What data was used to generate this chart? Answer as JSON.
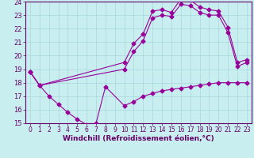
{
  "background_color": "#c8eef0",
  "grid_color": "#a8d8dc",
  "line_color": "#990099",
  "xlabel": "Windchill (Refroidissement éolien,°C)",
  "xlim": [
    -0.5,
    23.5
  ],
  "ylim": [
    15,
    24
  ],
  "xticks": [
    0,
    1,
    2,
    3,
    4,
    5,
    6,
    7,
    8,
    9,
    10,
    11,
    12,
    13,
    14,
    15,
    16,
    17,
    18,
    19,
    20,
    21,
    22,
    23
  ],
  "yticks": [
    15,
    16,
    17,
    18,
    19,
    20,
    21,
    22,
    23,
    24
  ],
  "line1_x": [
    0,
    1,
    2,
    3,
    4,
    5,
    6,
    7,
    8,
    10,
    11,
    12,
    13,
    14,
    15,
    16,
    17,
    18,
    19,
    20,
    21,
    22,
    23
  ],
  "line1_y": [
    18.8,
    17.8,
    17.0,
    16.4,
    15.8,
    15.3,
    14.9,
    15.0,
    17.7,
    16.3,
    16.6,
    17.0,
    17.2,
    17.4,
    17.5,
    17.6,
    17.7,
    17.8,
    17.9,
    18.0,
    18.0,
    18.0,
    18.0
  ],
  "line2_x": [
    0,
    1,
    10,
    11,
    12,
    13,
    14,
    15,
    16,
    17,
    18,
    19,
    20,
    21,
    22,
    23
  ],
  "line2_y": [
    18.8,
    17.8,
    19.5,
    20.9,
    21.6,
    23.3,
    23.4,
    23.2,
    24.2,
    24.1,
    23.6,
    23.4,
    23.3,
    22.1,
    19.5,
    19.7
  ],
  "line3_x": [
    0,
    1,
    10,
    11,
    12,
    13,
    14,
    15,
    16,
    17,
    18,
    19,
    20,
    21,
    22,
    23
  ],
  "line3_y": [
    18.8,
    17.8,
    19.0,
    20.3,
    21.1,
    22.8,
    23.0,
    22.9,
    23.8,
    23.7,
    23.2,
    23.0,
    23.0,
    21.7,
    19.2,
    19.5
  ],
  "marker": "D",
  "markersize": 2.5,
  "linewidth": 0.8,
  "tick_fontsize": 5.5,
  "xlabel_fontsize": 6.5
}
